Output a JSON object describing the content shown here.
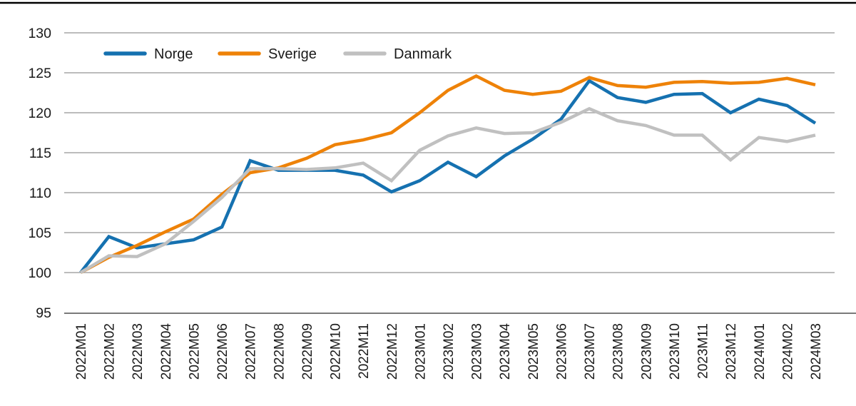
{
  "chart_data": {
    "type": "line",
    "title": "",
    "xlabel": "",
    "ylabel": "",
    "ylim": [
      95,
      130
    ],
    "y_ticks": [
      95,
      100,
      105,
      110,
      115,
      120,
      125,
      130
    ],
    "grid": "horizontal",
    "legend_position": "top",
    "categories": [
      "2022M01",
      "2022M02",
      "2022M03",
      "2022M04",
      "2022M05",
      "2022M06",
      "2022M07",
      "2022M08",
      "2022M09",
      "2022M10",
      "2022M11",
      "2022M12",
      "2023M01",
      "2023M02",
      "2023M03",
      "2023M04",
      "2023M05",
      "2023M06",
      "2023M07",
      "2023M08",
      "2023M09",
      "2023M10",
      "2023M11",
      "2023M12",
      "2024M01",
      "2024M02",
      "2024M03"
    ],
    "series": [
      {
        "name": "Norge",
        "color": "#1571b0",
        "values": [
          100,
          104.5,
          103.1,
          103.6,
          104.1,
          105.7,
          114.0,
          112.8,
          112.8,
          112.8,
          112.2,
          110.1,
          111.5,
          113.8,
          112.0,
          114.6,
          116.7,
          119.2,
          124.0,
          121.9,
          121.3,
          122.3,
          122.4,
          120.0,
          121.7,
          120.9,
          118.7
        ]
      },
      {
        "name": "Sverige",
        "color": "#ee8208",
        "values": [
          100,
          101.9,
          103.4,
          105.1,
          106.7,
          109.8,
          112.5,
          113.1,
          114.3,
          116.0,
          116.6,
          117.5,
          120.0,
          122.8,
          124.6,
          122.8,
          122.3,
          122.7,
          124.4,
          123.4,
          123.2,
          123.8,
          123.9,
          123.7,
          123.8,
          124.3,
          123.5
        ]
      },
      {
        "name": "Danmark",
        "color": "#c0c0c0",
        "values": [
          100,
          102.1,
          102.0,
          103.6,
          106.4,
          109.4,
          113.0,
          113.0,
          112.9,
          113.1,
          113.7,
          111.5,
          115.3,
          117.1,
          118.1,
          117.4,
          117.5,
          118.8,
          120.5,
          119.0,
          118.4,
          117.2,
          117.2,
          114.1,
          116.9,
          116.4,
          117.2
        ]
      }
    ],
    "colors": {
      "gridline": "#a6a6a6",
      "axis_line": "#7a7a7a",
      "top_border": "#000000",
      "tick_text": "#1a1a1a"
    }
  }
}
